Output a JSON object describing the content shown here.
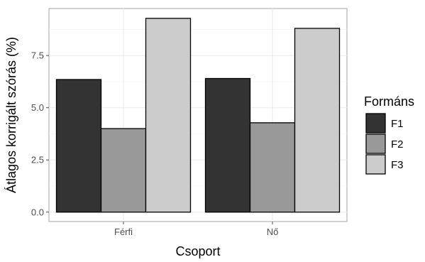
{
  "chart_data": {
    "type": "bar",
    "title": "",
    "xlabel": "Csoport",
    "ylabel": "Átlagos korrigált szórás (%)",
    "categories": [
      "Férfi",
      "Nő"
    ],
    "series": [
      {
        "name": "F1",
        "values": [
          6.35,
          6.4
        ],
        "color": "#333333"
      },
      {
        "name": "F2",
        "values": [
          4.0,
          4.28
        ],
        "color": "#999999"
      },
      {
        "name": "F3",
        "values": [
          9.28,
          8.8
        ],
        "color": "#cccccc"
      }
    ],
    "ylim": [
      -0.45,
      9.75
    ],
    "yticks": [
      0.0,
      2.5,
      5.0,
      7.5
    ],
    "ytick_labels": [
      "0.0",
      "2.5",
      "5.0",
      "7.5"
    ],
    "grid": true,
    "legend": {
      "title": "Formáns",
      "position": "right"
    }
  }
}
